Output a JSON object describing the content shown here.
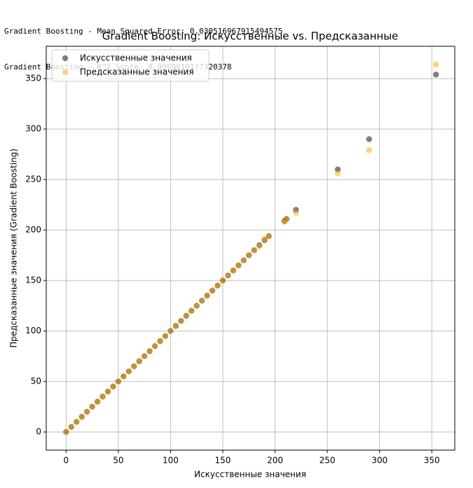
{
  "console_output": [
    "Gradient Boosting - Mean Squared Error: 0.030516967915494575",
    "Gradient Boosting - R^2 Score: 0.9999810177320378"
  ],
  "chart_data": {
    "type": "scatter",
    "title": "Gradient Boosting: Искусственные vs. Предсказанные",
    "x_label": "Искусственные значения",
    "y_label": "Предсказанные значения (Gradient Boosting)",
    "x": [
      0,
      5,
      10,
      15,
      20,
      25,
      30,
      35,
      40,
      45,
      50,
      55,
      60,
      65,
      70,
      75,
      80,
      85,
      90,
      95,
      100,
      105,
      110,
      115,
      120,
      125,
      130,
      135,
      140,
      145,
      150,
      155,
      160,
      165,
      170,
      175,
      180,
      185,
      190,
      194,
      209,
      211,
      220,
      260,
      290,
      354
    ],
    "series": [
      {
        "name": "Искусственные значения",
        "color": "#000000",
        "alpha": 0.5,
        "values": [
          0,
          5,
          10,
          15,
          20,
          25,
          30,
          35,
          40,
          45,
          50,
          55,
          60,
          65,
          70,
          75,
          80,
          85,
          90,
          95,
          100,
          105,
          110,
          115,
          120,
          125,
          130,
          135,
          140,
          145,
          150,
          155,
          160,
          165,
          170,
          175,
          180,
          185,
          190,
          194,
          209,
          211,
          220,
          260,
          290,
          354
        ]
      },
      {
        "name": "Предсказанные значения",
        "color": "#ffa500",
        "alpha": 0.5,
        "values": [
          0,
          5,
          10,
          15,
          20,
          25,
          30,
          35,
          40,
          45,
          50,
          55,
          60,
          65,
          70,
          75,
          80,
          85,
          90,
          95,
          100,
          105,
          110,
          115,
          120,
          125,
          130,
          135,
          140,
          145,
          150,
          155,
          160,
          165,
          170,
          175,
          180,
          184,
          191,
          194,
          208,
          211,
          217,
          256,
          279,
          364
        ]
      }
    ],
    "xlim": [
      -19,
      372
    ],
    "ylim": [
      -18,
      382
    ],
    "xticks": [
      0,
      50,
      100,
      150,
      200,
      250,
      300,
      350
    ],
    "yticks": [
      0,
      50,
      100,
      150,
      200,
      250,
      300,
      350
    ],
    "grid": true,
    "legend": "upper left"
  }
}
